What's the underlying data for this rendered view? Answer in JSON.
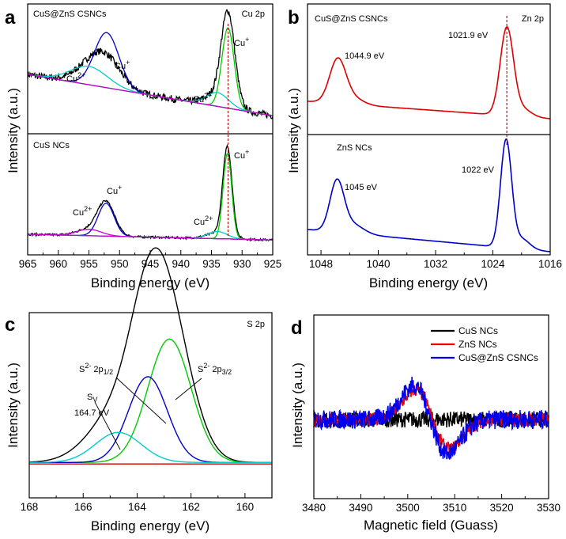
{
  "figure": {
    "letters": [
      "a",
      "b",
      "c",
      "d"
    ]
  },
  "chart_data": [
    {
      "panel": "a",
      "type": "line",
      "title": "Cu 2p",
      "xlabel": "Binding energy (eV)",
      "ylabel": "Intensity (a.u.)",
      "xlim": [
        965,
        925
      ],
      "xticks": [
        "965",
        "960",
        "955",
        "950",
        "945",
        "940",
        "935",
        "930",
        "925"
      ],
      "subplots": [
        {
          "label": "CuS@ZnS CSNCs",
          "annotations": [
            "Cu2+",
            "Cu+",
            "Cu2+",
            "Cu+"
          ],
          "series": [
            {
              "name": "raw",
              "color": "#000000",
              "noise": 0.6,
              "peaks": [
                [
                  952.1,
                  2.4,
                  2.3
                ],
                [
                  932.3,
                  1.1,
                  7.8
                ],
                [
                  955.0,
                  2.5,
                  1.3
                ],
                [
                  934.0,
                  2.0,
                  1.0
                ]
              ],
              "baseline": [
                965,
                4.0,
                925,
                0.4
              ]
            },
            {
              "name": "Cu+ 2p1/2 fit",
              "color": "#0000cc",
              "peaks": [
                [
                  952.1,
                  2.0,
                  4.8
                ]
              ],
              "baseline": [
                965,
                4.0,
                925,
                0.4
              ]
            },
            {
              "name": "Cu2+ 2p1/2 fit",
              "color": "#00cccc",
              "peaks": [
                [
                  955.0,
                  3.0,
                  1.6
                ]
              ],
              "baseline": [
                965,
                4.0,
                925,
                0.4
              ]
            },
            {
              "name": "Cu+ 2p3/2 fit",
              "color": "#00cc00",
              "peaks": [
                [
                  932.3,
                  1.0,
                  7.0
                ]
              ],
              "baseline": [
                965,
                4.0,
                925,
                0.4
              ]
            },
            {
              "name": "Cu2+ 2p3/2 fit",
              "color": "#00cccc",
              "peaks": [
                [
                  934.0,
                  1.8,
                  1.2
                ]
              ],
              "baseline": [
                965,
                4.0,
                925,
                0.4
              ]
            },
            {
              "name": "background",
              "color": "#cc00cc",
              "peaks": [],
              "baseline": [
                965,
                4.0,
                925,
                0.4
              ]
            }
          ]
        },
        {
          "label": "CuS NCs",
          "annotations": [
            "Cu2+",
            "Cu+",
            "Cu2+",
            "Cu+"
          ],
          "series": [
            {
              "name": "raw",
              "color": "#000000",
              "noise": 0.3,
              "peaks": [
                [
                  952.2,
                  1.4,
                  4.6
                ],
                [
                  932.4,
                  0.75,
                  12.5
                ],
                [
                  955.0,
                  2.0,
                  0.9
                ],
                [
                  934.0,
                  1.8,
                  0.8
                ]
              ],
              "baseline": [
                965,
                1.0,
                925,
                0.2
              ]
            },
            {
              "name": "Cu+ 2p1/2 fit",
              "color": "#0000cc",
              "peaks": [
                [
                  952.2,
                  1.3,
                  4.6
                ]
              ],
              "baseline": [
                965,
                1.0,
                925,
                0.2
              ]
            },
            {
              "name": "Cu2+ 2p1/2 fit",
              "color": "#cc00cc",
              "peaks": [
                [
                  955.0,
                  2.0,
                  0.9
                ]
              ],
              "baseline": [
                965,
                1.0,
                925,
                0.2
              ]
            },
            {
              "name": "Cu+ 2p3/2 fit",
              "color": "#00cc00",
              "peaks": [
                [
                  932.4,
                  0.7,
                  12.0
                ]
              ],
              "baseline": [
                965,
                1.0,
                925,
                0.2
              ]
            },
            {
              "name": "Cu2+ 2p3/2 fit",
              "color": "#00cccc",
              "peaks": [
                [
                  934.0,
                  1.6,
                  1.0
                ]
              ],
              "baseline": [
                965,
                1.0,
                925,
                0.2
              ]
            },
            {
              "name": "background",
              "color": "#cc00cc",
              "peaks": [],
              "baseline": [
                965,
                1.0,
                925,
                0.2
              ]
            }
          ]
        }
      ]
    },
    {
      "panel": "b",
      "type": "line",
      "title": "Zn 2p",
      "xlabel": "Binding energy (eV)",
      "ylabel": "Intensity (a.u.)",
      "xlim": [
        1049,
        1016
      ],
      "xticks": [
        "1048",
        "1040",
        "1032",
        "1024",
        "1016"
      ],
      "subplots": [
        {
          "label": "CuS@ZnS CSNCs",
          "annotations": [
            "1044.9 eV",
            "1021.9 eV"
          ],
          "series": [
            {
              "name": "Zn 2p",
              "color": "#dd0000",
              "noise": 0.0,
              "peaks": [
                [
                  1044.9,
                  1.1,
                  5.5
                ],
                [
                  1042.8,
                  1.4,
                  0.8
                ],
                [
                  1021.9,
                  0.9,
                  11.0
                ],
                [
                  1019.8,
                  1.2,
                  1.0
                ]
              ],
              "baseline": [
                1049,
                2.2,
                1016,
                0.0
              ]
            }
          ]
        },
        {
          "label": "ZnS NCs",
          "annotations": [
            "1045 eV",
            "1022 eV"
          ],
          "series": [
            {
              "name": "Zn 2p",
              "color": "#0000cc",
              "noise": 0.0,
              "peaks": [
                [
                  1045.0,
                  0.95,
                  5.8
                ],
                [
                  1042.9,
                  1.5,
                  1.1
                ],
                [
                  1022.0,
                  0.75,
                  12.5
                ],
                [
                  1019.9,
                  1.1,
                  1.2
                ]
              ],
              "baseline": [
                1049,
                2.6,
                1016,
                0.0
              ]
            }
          ]
        }
      ]
    },
    {
      "panel": "c",
      "type": "line",
      "title": "S 2p",
      "xlabel": "Binding energy (eV)",
      "ylabel": "Intensity (a.u.)",
      "xlim": [
        168,
        159
      ],
      "xticks": [
        "168",
        "166",
        "164",
        "162",
        "160"
      ],
      "annotations": [
        "S2- 2p1/2",
        "S2- 2p3/2",
        "SV",
        "164.7 eV"
      ],
      "series": [
        {
          "name": "raw",
          "color": "#000000",
          "peaks": [
            [
              163.6,
              0.72,
              7.0
            ],
            [
              162.8,
              0.85,
              8.5
            ],
            [
              164.7,
              0.85,
              2.6
            ],
            [
              165.6,
              0.9,
              0.8
            ]
          ],
          "baseline": [
            168,
            0.3,
            159,
            0.3
          ]
        },
        {
          "name": "S2- 2p3/2",
          "color": "#00cc00",
          "peaks": [
            [
              162.8,
              0.8,
              8.2
            ]
          ],
          "baseline": [
            168,
            0.3,
            159,
            0.3
          ]
        },
        {
          "name": "S2- 2p1/2",
          "color": "#0000cc",
          "peaks": [
            [
              163.6,
              0.72,
              5.7
            ]
          ],
          "baseline": [
            168,
            0.3,
            159,
            0.3
          ]
        },
        {
          "name": "SV",
          "color": "#00cccc",
          "peaks": [
            [
              164.7,
              0.85,
              2.0
            ]
          ],
          "baseline": [
            168,
            0.3,
            159,
            0.3
          ]
        },
        {
          "name": "background",
          "color": "#cc0000",
          "peaks": [],
          "baseline": [
            168,
            0.2,
            159,
            0.2
          ]
        }
      ]
    },
    {
      "panel": "d",
      "type": "line",
      "title": "",
      "xlabel": "Magnetic field (Guass)",
      "ylabel": "Intensity (a.u.)",
      "xlim": [
        3480,
        3530
      ],
      "xticks": [
        "3480",
        "3490",
        "3500",
        "3510",
        "3520",
        "3530"
      ],
      "legend_position": "top-right",
      "series": [
        {
          "name": "CuS NCs",
          "color": "#000000",
          "center": 3505.0,
          "amp": 0.0,
          "noise": 1.7
        },
        {
          "name": "ZnS NCs",
          "color": "#ee0000",
          "center": 3505.3,
          "amp": 15.5,
          "noise": 1.4
        },
        {
          "name": "CuS@ZnS CSNCs",
          "color": "#0000ee",
          "center": 3504.9,
          "amp": 18.0,
          "noise": 2.0
        }
      ]
    }
  ]
}
